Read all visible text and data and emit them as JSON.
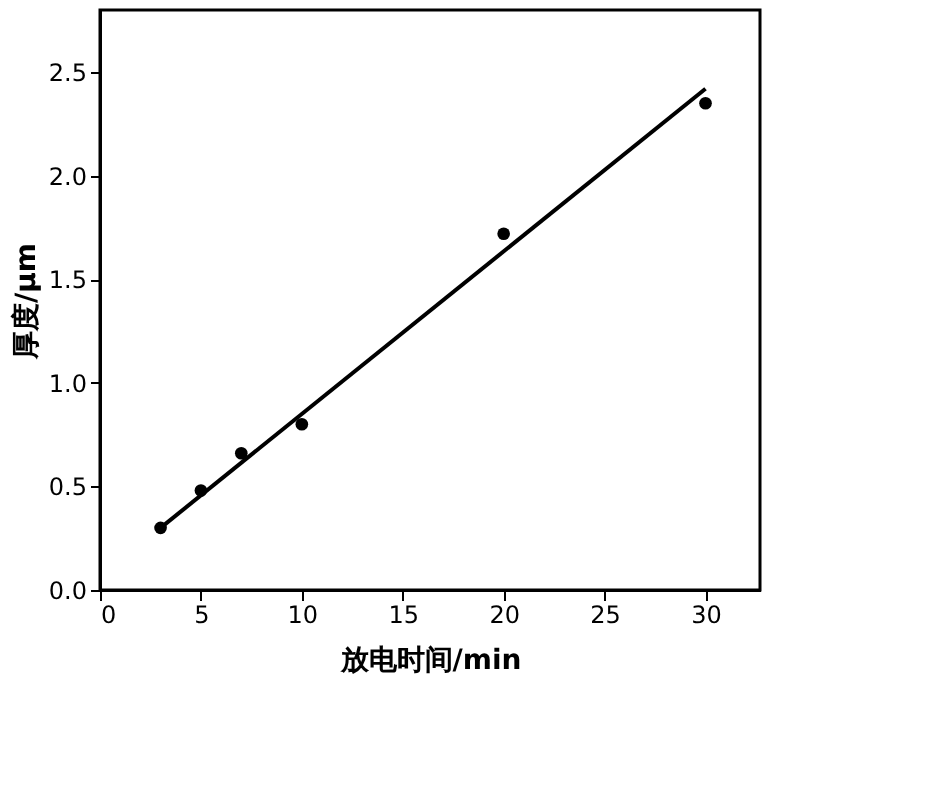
{
  "chart_data": {
    "type": "scatter",
    "xlabel": "放电时间/min",
    "ylabel": "厚度/μm",
    "xlim": [
      0,
      32.7
    ],
    "ylim": [
      0,
      2.8
    ],
    "xticks": [
      0,
      5,
      10,
      15,
      20,
      25,
      30
    ],
    "yticks": [
      {
        "value": 0,
        "label": "0.0"
      },
      0.5,
      {
        "value": 1,
        "label": "1.0"
      },
      1.5,
      {
        "value": 2,
        "label": "2.0"
      },
      2.5
    ],
    "grid": false,
    "series": [
      {
        "marker": "circle",
        "color": "#000000",
        "x": [
          3,
          5,
          7,
          10,
          20,
          30
        ],
        "values": [
          0.3,
          0.48,
          0.66,
          0.8,
          1.72,
          2.35
        ]
      },
      {
        "type": "line",
        "marker": "none",
        "color": "#000000",
        "x": [
          3,
          30
        ],
        "values": [
          0.3,
          2.42
        ]
      }
    ]
  }
}
